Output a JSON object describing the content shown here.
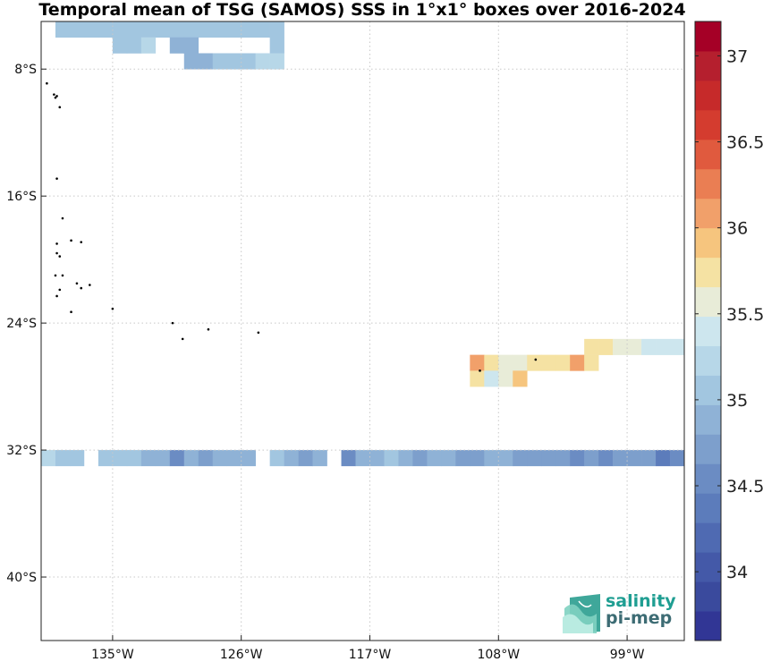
{
  "title": "Temporal mean of TSG (SAMOS) SSS in 1°x1° boxes over 2016-2024",
  "map": {
    "lon_range": [
      -140,
      -95
    ],
    "lat_range": [
      -44,
      -5
    ],
    "lon_ticks": [
      {
        "value": -135,
        "label": "135°W"
      },
      {
        "value": -126,
        "label": "126°W"
      },
      {
        "value": -117,
        "label": "117°W"
      },
      {
        "value": -108,
        "label": "108°W"
      },
      {
        "value": -99,
        "label": "99°W"
      }
    ],
    "lat_ticks": [
      {
        "value": -8,
        "label": "8°S"
      },
      {
        "value": -16,
        "label": "16°S"
      },
      {
        "value": -24,
        "label": "24°S"
      },
      {
        "value": -32,
        "label": "32°S"
      },
      {
        "value": -40,
        "label": "40°S"
      }
    ],
    "grid": true
  },
  "colorbar": {
    "min": 33.6,
    "max": 37.2,
    "step": 0.2,
    "ticks": [
      34,
      34.5,
      35,
      35.5,
      36,
      36.5,
      37
    ],
    "tick_labels": [
      "34",
      "34.5",
      "35",
      "35.5",
      "36",
      "36.5",
      "37"
    ],
    "colors": [
      "#313695",
      "#3a4a9d",
      "#4459a8",
      "#4f6ab2",
      "#5c7cbb",
      "#6b8cc3",
      "#7d9fcc",
      "#8fb2d6",
      "#a2c6e0",
      "#b7d7e8",
      "#cde6ee",
      "#e8ecd8",
      "#f5e2a3",
      "#f6c57e",
      "#f1a06a",
      "#ea7e53",
      "#e05a3e",
      "#d43c2f",
      "#c62a2a",
      "#b51f2e",
      "#a50026"
    ]
  },
  "chart_data": {
    "type": "heatmap",
    "title": "Temporal mean of TSG (SAMOS) SSS in 1°x1° boxes over 2016-2024",
    "variable": "SSS",
    "cell_size_deg": 1,
    "cells": [
      {
        "lon": -139,
        "lat": -5,
        "sss": 35.3
      },
      {
        "lon": -138,
        "lat": -5,
        "sss": 35.3
      },
      {
        "lon": -137,
        "lat": -5,
        "sss": 35.3
      },
      {
        "lon": -136,
        "lat": -5,
        "sss": 35.3
      },
      {
        "lon": -135,
        "lat": -5,
        "sss": 35.3
      },
      {
        "lon": -134,
        "lat": -5,
        "sss": 35.3
      },
      {
        "lon": -133,
        "lat": -5,
        "sss": 35.3
      },
      {
        "lon": -132,
        "lat": -5,
        "sss": 35.3
      },
      {
        "lon": -131,
        "lat": -5,
        "sss": 35.3
      },
      {
        "lon": -130,
        "lat": -5,
        "sss": 35.3
      },
      {
        "lon": -129,
        "lat": -5,
        "sss": 35.3
      },
      {
        "lon": -128,
        "lat": -5,
        "sss": 35.3
      },
      {
        "lon": -127,
        "lat": -5,
        "sss": 35.3
      },
      {
        "lon": -126,
        "lat": -5,
        "sss": 35.3
      },
      {
        "lon": -125,
        "lat": -5,
        "sss": 35.3
      },
      {
        "lon": -124,
        "lat": -5,
        "sss": 35.3
      },
      {
        "lon": -135,
        "lat": -6,
        "sss": 35.3
      },
      {
        "lon": -134,
        "lat": -6,
        "sss": 35.3
      },
      {
        "lon": -133,
        "lat": -6,
        "sss": 35.5
      },
      {
        "lon": -131,
        "lat": -6,
        "sss": 35.1
      },
      {
        "lon": -130,
        "lat": -6,
        "sss": 35.1
      },
      {
        "lon": -124,
        "lat": -6,
        "sss": 35.3
      },
      {
        "lon": -130,
        "lat": -7,
        "sss": 35.0
      },
      {
        "lon": -129,
        "lat": -7,
        "sss": 35.0
      },
      {
        "lon": -128,
        "lat": -7,
        "sss": 35.3
      },
      {
        "lon": -127,
        "lat": -7,
        "sss": 35.3
      },
      {
        "lon": -126,
        "lat": -7,
        "sss": 35.3
      },
      {
        "lon": -125,
        "lat": -7,
        "sss": 35.5
      },
      {
        "lon": -124,
        "lat": -7,
        "sss": 35.5
      },
      {
        "lon": -102,
        "lat": -25,
        "sss": 36.1
      },
      {
        "lon": -101,
        "lat": -25,
        "sss": 36.1
      },
      {
        "lon": -100,
        "lat": -25,
        "sss": 35.9
      },
      {
        "lon": -99,
        "lat": -25,
        "sss": 35.9
      },
      {
        "lon": -98,
        "lat": -25,
        "sss": 35.7
      },
      {
        "lon": -97,
        "lat": -25,
        "sss": 35.7
      },
      {
        "lon": -96,
        "lat": -25,
        "sss": 35.7
      },
      {
        "lon": -110,
        "lat": -26,
        "sss": 36.5
      },
      {
        "lon": -109,
        "lat": -26,
        "sss": 36.1
      },
      {
        "lon": -108,
        "lat": -26,
        "sss": 35.9
      },
      {
        "lon": -107,
        "lat": -26,
        "sss": 35.9
      },
      {
        "lon": -106,
        "lat": -26,
        "sss": 36.1
      },
      {
        "lon": -105,
        "lat": -26,
        "sss": 36.1
      },
      {
        "lon": -104,
        "lat": -26,
        "sss": 36.1
      },
      {
        "lon": -103,
        "lat": -26,
        "sss": 36.5
      },
      {
        "lon": -102,
        "lat": -26,
        "sss": 36.1
      },
      {
        "lon": -110,
        "lat": -27,
        "sss": 36.1
      },
      {
        "lon": -109,
        "lat": -27,
        "sss": 35.7
      },
      {
        "lon": -108,
        "lat": -27,
        "sss": 35.9
      },
      {
        "lon": -107,
        "lat": -27,
        "sss": 36.3
      },
      {
        "lon": -140,
        "lat": -32,
        "sss": 35.5
      },
      {
        "lon": -139,
        "lat": -32,
        "sss": 35.3
      },
      {
        "lon": -138,
        "lat": -32,
        "sss": 35.3
      },
      {
        "lon": -136,
        "lat": -32,
        "sss": 35.3
      },
      {
        "lon": -135,
        "lat": -32,
        "sss": 35.3
      },
      {
        "lon": -134,
        "lat": -32,
        "sss": 35.3
      },
      {
        "lon": -133,
        "lat": -32,
        "sss": 35.1
      },
      {
        "lon": -132,
        "lat": -32,
        "sss": 35.1
      },
      {
        "lon": -131,
        "lat": -32,
        "sss": 34.7
      },
      {
        "lon": -130,
        "lat": -32,
        "sss": 35.1
      },
      {
        "lon": -129,
        "lat": -32,
        "sss": 34.9
      },
      {
        "lon": -128,
        "lat": -32,
        "sss": 35.1
      },
      {
        "lon": -127,
        "lat": -32,
        "sss": 35.1
      },
      {
        "lon": -126,
        "lat": -32,
        "sss": 35.1
      },
      {
        "lon": -124,
        "lat": -32,
        "sss": 35.3
      },
      {
        "lon": -123,
        "lat": -32,
        "sss": 35.1
      },
      {
        "lon": -122,
        "lat": -32,
        "sss": 34.9
      },
      {
        "lon": -121,
        "lat": -32,
        "sss": 35.1
      },
      {
        "lon": -119,
        "lat": -32,
        "sss": 34.7
      },
      {
        "lon": -118,
        "lat": -32,
        "sss": 35.1
      },
      {
        "lon": -117,
        "lat": -32,
        "sss": 35.1
      },
      {
        "lon": -116,
        "lat": -32,
        "sss": 35.3
      },
      {
        "lon": -115,
        "lat": -32,
        "sss": 35.1
      },
      {
        "lon": -114,
        "lat": -32,
        "sss": 34.9
      },
      {
        "lon": -113,
        "lat": -32,
        "sss": 35.1
      },
      {
        "lon": -112,
        "lat": -32,
        "sss": 35.1
      },
      {
        "lon": -111,
        "lat": -32,
        "sss": 34.9
      },
      {
        "lon": -110,
        "lat": -32,
        "sss": 34.9
      },
      {
        "lon": -109,
        "lat": -32,
        "sss": 35.0
      },
      {
        "lon": -108,
        "lat": -32,
        "sss": 35.1
      },
      {
        "lon": -107,
        "lat": -32,
        "sss": 34.9
      },
      {
        "lon": -106,
        "lat": -32,
        "sss": 34.9
      },
      {
        "lon": -105,
        "lat": -32,
        "sss": 34.9
      },
      {
        "lon": -104,
        "lat": -32,
        "sss": 34.9
      },
      {
        "lon": -103,
        "lat": -32,
        "sss": 34.7
      },
      {
        "lon": -102,
        "lat": -32,
        "sss": 34.9
      },
      {
        "lon": -101,
        "lat": -32,
        "sss": 34.7
      },
      {
        "lon": -100,
        "lat": -32,
        "sss": 34.9
      },
      {
        "lon": -99,
        "lat": -32,
        "sss": 34.9
      },
      {
        "lon": -98,
        "lat": -32,
        "sss": 34.9
      },
      {
        "lon": -97,
        "lat": -32,
        "sss": 34.5
      },
      {
        "lon": -96,
        "lat": -32,
        "sss": 34.7
      }
    ]
  },
  "islands": [
    [
      -139.6,
      -8.9
    ],
    [
      -139.1,
      -9.6
    ],
    [
      -138.9,
      -9.7
    ],
    [
      -139.0,
      -9.8
    ],
    [
      -138.7,
      -10.4
    ],
    [
      -138.9,
      -14.9
    ],
    [
      -138.5,
      -17.4
    ],
    [
      -138.9,
      -19.0
    ],
    [
      -137.9,
      -18.8
    ],
    [
      -137.2,
      -18.9
    ],
    [
      -138.9,
      -19.6
    ],
    [
      -138.7,
      -19.8
    ],
    [
      -138.5,
      -21.0
    ],
    [
      -139.0,
      -21.0
    ],
    [
      -138.7,
      -21.9
    ],
    [
      -138.9,
      -22.3
    ],
    [
      -137.5,
      -21.5
    ],
    [
      -137.2,
      -21.8
    ],
    [
      -136.6,
      -21.6
    ],
    [
      -137.9,
      -23.3
    ],
    [
      -135.0,
      -23.1
    ],
    [
      -130.8,
      -24.0
    ],
    [
      -130.1,
      -25.0
    ],
    [
      -128.3,
      -24.4
    ],
    [
      -124.8,
      -24.6
    ],
    [
      -109.3,
      -27.0
    ],
    [
      -105.4,
      -26.3
    ]
  ],
  "logo": {
    "line1": "salinity",
    "line2": "pi-mep",
    "icon": "waves-logo-icon"
  }
}
